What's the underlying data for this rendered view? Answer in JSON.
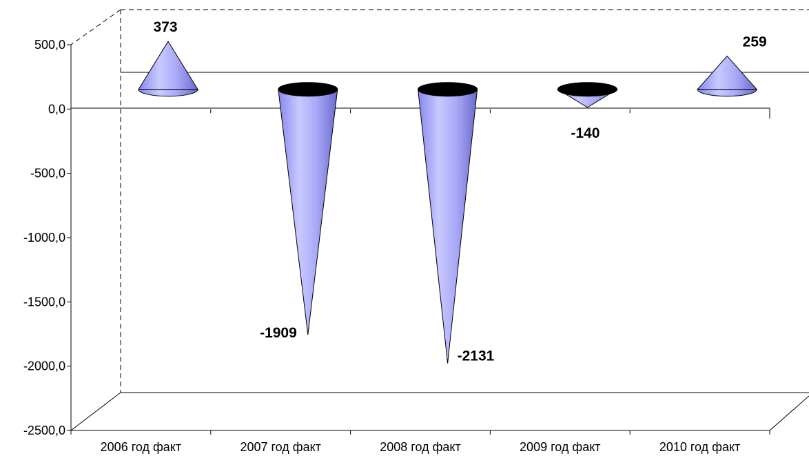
{
  "chart_data": {
    "type": "bar",
    "shape": "cone",
    "view": "3d",
    "categories": [
      "2006 год факт",
      "2007 год факт",
      "2008 год факт",
      "2009 год факт",
      "2010 год факт"
    ],
    "values": [
      373,
      -1909,
      -2131,
      -140,
      259
    ],
    "data_labels": [
      "373",
      "-1909",
      "-2131",
      "-140",
      "259"
    ],
    "y_ticks": [
      "500,0",
      "0,0",
      "-500,0",
      "-1000,0",
      "-1500,0",
      "-2000,0",
      "-2500,0"
    ],
    "ylim": [
      -2500,
      500
    ],
    "grid": false,
    "legend": "none",
    "title": "",
    "xlabel": "",
    "ylabel": "",
    "colors": {
      "cone_light": "#c8c8ff",
      "cone_mid": "#9999ff",
      "cone_dark": "#5a5ab4",
      "cone_base": "#000000",
      "axis": "#000000",
      "dash": "#000000"
    }
  }
}
